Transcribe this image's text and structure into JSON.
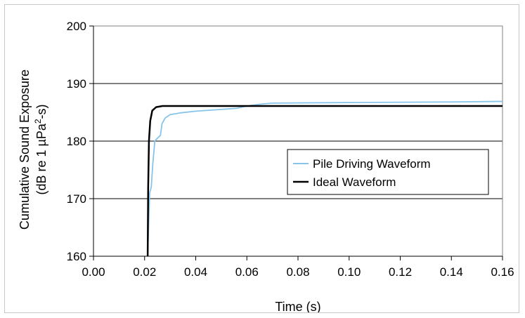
{
  "chart_data": {
    "type": "line",
    "xlabel": "Time (s)",
    "ylabel_line1": "Cumulative Sound Exposure",
    "ylabel_line2_prefix": "(dB re 1 µPa",
    "ylabel_line2_sup": "2",
    "ylabel_line2_suffix": "-s)",
    "xlim": [
      0,
      0.16
    ],
    "ylim": [
      160,
      200
    ],
    "x_ticks": [
      "0.00",
      "0.02",
      "0.04",
      "0.06",
      "0.08",
      "0.10",
      "0.12",
      "0.14",
      "0.16"
    ],
    "y_ticks": [
      "160",
      "170",
      "180",
      "190",
      "200"
    ],
    "grid": "horizontal",
    "legend_position": "center-right",
    "series": [
      {
        "name": "Pile Driving Waveform",
        "color": "#87c4ea",
        "points": [
          [
            0.0212,
            160
          ],
          [
            0.0216,
            166
          ],
          [
            0.022,
            171
          ],
          [
            0.0226,
            172
          ],
          [
            0.0232,
            176
          ],
          [
            0.024,
            180
          ],
          [
            0.025,
            180.5
          ],
          [
            0.0262,
            181
          ],
          [
            0.0268,
            183
          ],
          [
            0.028,
            184
          ],
          [
            0.03,
            184.6
          ],
          [
            0.034,
            184.9
          ],
          [
            0.04,
            185.2
          ],
          [
            0.05,
            185.5
          ],
          [
            0.056,
            185.7
          ],
          [
            0.06,
            186.1
          ],
          [
            0.065,
            186.4
          ],
          [
            0.07,
            186.6
          ],
          [
            0.1,
            186.7
          ],
          [
            0.14,
            186.8
          ],
          [
            0.16,
            186.9
          ]
        ]
      },
      {
        "name": "Ideal Waveform",
        "color": "#000000",
        "points": [
          [
            0.0212,
            160
          ],
          [
            0.0214,
            172
          ],
          [
            0.0217,
            180
          ],
          [
            0.0222,
            183.5
          ],
          [
            0.023,
            185.3
          ],
          [
            0.0245,
            185.9
          ],
          [
            0.027,
            186.1
          ],
          [
            0.03,
            186.1
          ],
          [
            0.16,
            186.1
          ]
        ]
      }
    ]
  }
}
